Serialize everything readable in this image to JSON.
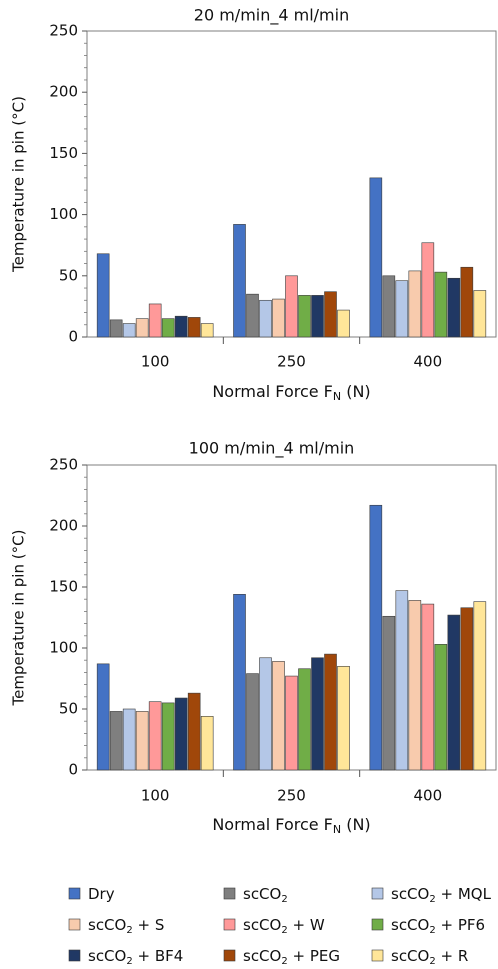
{
  "chart_data": [
    {
      "type": "bar",
      "title": "20 m/min_4 ml/min",
      "xlabel": "Normal Force F",
      "xlabel_sub": "N",
      "xlabel_unit": " (N)",
      "ylabel": "Temperature in pin (°C)",
      "ylim": [
        0,
        250
      ],
      "yticks": [
        "0",
        "50",
        "100",
        "150",
        "200",
        "250"
      ],
      "categories": [
        "100",
        "250",
        "400"
      ],
      "series": [
        {
          "name": "Dry",
          "color": "#4472C4",
          "values": [
            68,
            92,
            130
          ]
        },
        {
          "name": "scCO2",
          "color": "#7F7F7F",
          "values": [
            14,
            35,
            50
          ]
        },
        {
          "name": "scCO2 + MQL",
          "color": "#B4C7E7",
          "values": [
            11,
            30,
            46
          ]
        },
        {
          "name": "scCO2 + S",
          "color": "#F8CBAD",
          "values": [
            15,
            31,
            54
          ]
        },
        {
          "name": "scCO2 + W",
          "color": "#FF9999",
          "values": [
            27,
            50,
            77
          ]
        },
        {
          "name": "scCO2 + PF6",
          "color": "#70AD47",
          "values": [
            15,
            34,
            53
          ]
        },
        {
          "name": "scCO2 + BF4",
          "color": "#203864",
          "values": [
            17,
            34,
            48
          ]
        },
        {
          "name": "scCO2 + PEG",
          "color": "#A0470A",
          "values": [
            16,
            37,
            57
          ]
        },
        {
          "name": "scCO2 + R",
          "color": "#FFE699",
          "values": [
            11,
            22,
            38
          ]
        }
      ]
    },
    {
      "type": "bar",
      "title": "100 m/min_4 ml/min",
      "xlabel": "Normal Force F",
      "xlabel_sub": "N",
      "xlabel_unit": " (N)",
      "ylabel": "Temperature in pin (°C)",
      "ylim": [
        0,
        250
      ],
      "yticks": [
        "0",
        "50",
        "100",
        "150",
        "200",
        "250"
      ],
      "categories": [
        "100",
        "250",
        "400"
      ],
      "series": [
        {
          "name": "Dry",
          "color": "#4472C4",
          "values": [
            87,
            144,
            217
          ]
        },
        {
          "name": "scCO2",
          "color": "#7F7F7F",
          "values": [
            48,
            79,
            126
          ]
        },
        {
          "name": "scCO2 + MQL",
          "color": "#B4C7E7",
          "values": [
            50,
            92,
            147
          ]
        },
        {
          "name": "scCO2 + S",
          "color": "#F8CBAD",
          "values": [
            48,
            89,
            139
          ]
        },
        {
          "name": "scCO2 + W",
          "color": "#FF9999",
          "values": [
            56,
            77,
            136
          ]
        },
        {
          "name": "scCO2 + PF6",
          "color": "#70AD47",
          "values": [
            55,
            83,
            103
          ]
        },
        {
          "name": "scCO2 + BF4",
          "color": "#203864",
          "values": [
            59,
            92,
            127
          ]
        },
        {
          "name": "scCO2 + PEG",
          "color": "#A0470A",
          "values": [
            63,
            95,
            133
          ]
        },
        {
          "name": "scCO2 + R",
          "color": "#FFE699",
          "values": [
            44,
            85,
            138
          ]
        }
      ]
    }
  ],
  "legend": {
    "placement": "bottom",
    "items": [
      {
        "label_main": "Dry",
        "label_sub": "",
        "label_rest": "",
        "color": "#4472C4"
      },
      {
        "label_main": "scCO",
        "label_sub": "2",
        "label_rest": "",
        "color": "#7F7F7F"
      },
      {
        "label_main": "scCO",
        "label_sub": "2",
        "label_rest": " + MQL",
        "color": "#B4C7E7"
      },
      {
        "label_main": "scCO",
        "label_sub": "2",
        "label_rest": " + S",
        "color": "#F8CBAD"
      },
      {
        "label_main": "scCO",
        "label_sub": "2",
        "label_rest": " + W",
        "color": "#FF9999"
      },
      {
        "label_main": "scCO",
        "label_sub": "2",
        "label_rest": " + PF6",
        "color": "#70AD47"
      },
      {
        "label_main": "scCO",
        "label_sub": "2",
        "label_rest": " + BF4",
        "color": "#203864"
      },
      {
        "label_main": "scCO",
        "label_sub": "2",
        "label_rest": " + PEG",
        "color": "#A0470A"
      },
      {
        "label_main": "scCO",
        "label_sub": "2",
        "label_rest": " + R",
        "color": "#FFE699"
      }
    ]
  }
}
